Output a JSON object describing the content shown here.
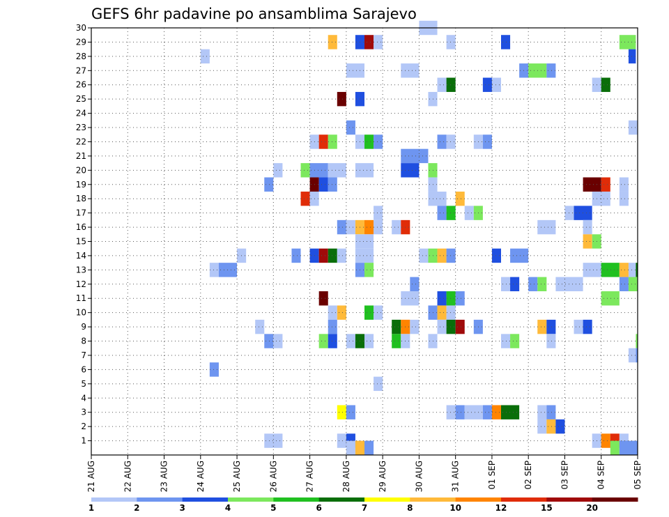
{
  "chart_data": {
    "type": "heatmap",
    "title": "GEFS 6hr padavine po ansamblima Sarajevo",
    "x_tick_labels": [
      "21 AUG",
      "22 AUG",
      "23 AUG",
      "24 AUG",
      "25 AUG",
      "26 AUG",
      "27 AUG",
      "28 AUG",
      "29 AUG",
      "30 AUG",
      "31 AUG",
      "01 SEP",
      "02 SEP",
      "03 SEP",
      "04 SEP",
      "05 SEP"
    ],
    "y_tick_labels": [
      "1",
      "2",
      "3",
      "4",
      "5",
      "6",
      "7",
      "8",
      "9",
      "10",
      "11",
      "12",
      "13",
      "14",
      "15",
      "16",
      "17",
      "18",
      "19",
      "20",
      "21",
      "22",
      "23",
      "24",
      "25",
      "26",
      "27",
      "28",
      "29",
      "30"
    ],
    "xlim": [
      0,
      15
    ],
    "ylim": [
      0,
      30
    ],
    "grid": true,
    "legend": {
      "placement": "bottom",
      "labels": [
        "1",
        "2",
        "3",
        "4",
        "5",
        "6",
        "7",
        "8",
        "10",
        "12",
        "15",
        "20"
      ],
      "colors": [
        "#b3c7f7",
        "#6e95f0",
        "#1f4fe0",
        "#7ce85d",
        "#20c020",
        "#0a6e0a",
        "#ffff00",
        "#ffba3a",
        "#ff8400",
        "#e02c08",
        "#a00a0a",
        "#6a0000"
      ]
    },
    "palette": [
      "#b3c7f7",
      "#6e95f0",
      "#1f4fe0",
      "#7ce85d",
      "#20c020",
      "#0a6e0a",
      "#ffff00",
      "#ffba3a",
      "#ff8400",
      "#e02c08",
      "#a00a0a",
      "#6a0000"
    ],
    "cells_format": "[x_day_start, x_day_end, y_member, color_class_index]",
    "cells": [
      [
        9.0,
        9.5,
        30,
        0
      ],
      [
        6.5,
        6.75,
        29,
        7
      ],
      [
        7.25,
        7.5,
        29,
        2
      ],
      [
        7.5,
        7.75,
        29,
        10
      ],
      [
        7.75,
        8.0,
        29,
        0
      ],
      [
        9.75,
        10.0,
        29,
        0
      ],
      [
        11.25,
        11.5,
        29,
        2
      ],
      [
        14.5,
        14.95,
        29,
        3
      ],
      [
        3.0,
        3.25,
        28,
        0
      ],
      [
        14.75,
        14.95,
        28,
        2
      ],
      [
        7.0,
        7.5,
        27,
        0
      ],
      [
        8.5,
        9.0,
        27,
        0
      ],
      [
        11.75,
        12.0,
        27,
        1
      ],
      [
        12.0,
        12.5,
        27,
        3
      ],
      [
        12.5,
        12.75,
        27,
        1
      ],
      [
        9.5,
        9.75,
        26,
        0
      ],
      [
        9.75,
        10.0,
        26,
        5
      ],
      [
        10.75,
        11.0,
        26,
        2
      ],
      [
        11.0,
        11.25,
        26,
        0
      ],
      [
        13.75,
        14.0,
        26,
        0
      ],
      [
        14.0,
        14.25,
        26,
        5
      ],
      [
        6.75,
        7.0,
        25,
        11
      ],
      [
        7.25,
        7.5,
        25,
        2
      ],
      [
        9.25,
        9.5,
        25,
        0
      ],
      [
        7.0,
        7.25,
        23,
        1
      ],
      [
        14.75,
        15.0,
        23,
        0
      ],
      [
        6.0,
        6.25,
        22,
        0
      ],
      [
        6.25,
        6.5,
        22,
        9
      ],
      [
        6.5,
        6.75,
        22,
        3
      ],
      [
        7.25,
        7.5,
        22,
        0
      ],
      [
        7.5,
        7.75,
        22,
        4
      ],
      [
        7.75,
        8.0,
        22,
        1
      ],
      [
        9.5,
        9.75,
        22,
        1
      ],
      [
        9.75,
        10.0,
        22,
        0
      ],
      [
        10.5,
        10.75,
        22,
        0
      ],
      [
        10.75,
        11.0,
        22,
        1
      ],
      [
        8.5,
        9.25,
        21,
        1
      ],
      [
        5.0,
        5.25,
        20,
        0
      ],
      [
        5.75,
        6.0,
        20,
        3
      ],
      [
        6.0,
        6.5,
        20,
        1
      ],
      [
        6.5,
        7.0,
        20,
        0
      ],
      [
        7.25,
        7.75,
        20,
        0
      ],
      [
        8.5,
        9.0,
        20,
        2
      ],
      [
        9.25,
        9.5,
        20,
        3
      ],
      [
        4.75,
        5.0,
        19,
        1
      ],
      [
        6.0,
        6.25,
        19,
        11
      ],
      [
        6.25,
        6.5,
        19,
        2
      ],
      [
        6.5,
        6.75,
        19,
        1
      ],
      [
        9.25,
        9.5,
        19,
        0
      ],
      [
        13.5,
        14.0,
        19,
        11
      ],
      [
        14.0,
        14.25,
        19,
        9
      ],
      [
        14.5,
        14.75,
        19,
        0
      ],
      [
        5.75,
        6.0,
        18,
        9
      ],
      [
        6.0,
        6.25,
        18,
        0
      ],
      [
        9.25,
        9.75,
        18,
        0
      ],
      [
        10.0,
        10.25,
        18,
        7
      ],
      [
        13.75,
        14.25,
        18,
        0
      ],
      [
        14.5,
        14.75,
        18,
        0
      ],
      [
        7.75,
        8.0,
        17,
        0
      ],
      [
        9.5,
        9.75,
        17,
        1
      ],
      [
        9.75,
        10.0,
        17,
        4
      ],
      [
        10.25,
        10.5,
        17,
        0
      ],
      [
        10.5,
        10.75,
        17,
        3
      ],
      [
        13.0,
        13.25,
        17,
        0
      ],
      [
        13.25,
        13.75,
        17,
        2
      ],
      [
        6.75,
        7.0,
        16,
        1
      ],
      [
        7.0,
        7.25,
        16,
        0
      ],
      [
        7.25,
        7.5,
        16,
        7
      ],
      [
        7.5,
        7.75,
        16,
        8
      ],
      [
        7.75,
        8.0,
        16,
        0
      ],
      [
        8.25,
        8.5,
        16,
        0
      ],
      [
        8.5,
        8.75,
        16,
        9
      ],
      [
        12.25,
        12.75,
        16,
        0
      ],
      [
        13.5,
        13.75,
        16,
        0
      ],
      [
        7.25,
        7.75,
        15,
        0
      ],
      [
        13.5,
        13.75,
        15,
        7
      ],
      [
        13.75,
        14.0,
        15,
        3
      ],
      [
        4.0,
        4.25,
        14,
        0
      ],
      [
        5.5,
        5.75,
        14,
        1
      ],
      [
        6.0,
        6.25,
        14,
        2
      ],
      [
        6.25,
        6.5,
        14,
        10
      ],
      [
        6.5,
        6.75,
        14,
        5
      ],
      [
        6.75,
        7.0,
        14,
        0
      ],
      [
        7.25,
        7.75,
        14,
        0
      ],
      [
        9.0,
        9.25,
        14,
        0
      ],
      [
        9.25,
        9.5,
        14,
        3
      ],
      [
        9.5,
        9.75,
        14,
        7
      ],
      [
        9.75,
        10.0,
        14,
        1
      ],
      [
        11.0,
        11.25,
        14,
        2
      ],
      [
        11.5,
        12.0,
        14,
        1
      ],
      [
        3.25,
        3.5,
        13,
        0
      ],
      [
        3.5,
        4.0,
        13,
        1
      ],
      [
        7.25,
        7.5,
        13,
        1
      ],
      [
        7.5,
        7.75,
        13,
        3
      ],
      [
        13.5,
        14.0,
        13,
        0
      ],
      [
        14.0,
        14.5,
        13,
        4
      ],
      [
        14.5,
        14.75,
        13,
        7
      ],
      [
        14.75,
        14.95,
        13,
        0
      ],
      [
        14.95,
        15.0,
        13,
        5
      ],
      [
        8.75,
        9.0,
        12,
        1
      ],
      [
        11.25,
        11.5,
        12,
        0
      ],
      [
        11.5,
        11.75,
        12,
        2
      ],
      [
        12.0,
        12.25,
        12,
        1
      ],
      [
        12.25,
        12.5,
        12,
        3
      ],
      [
        12.75,
        13.5,
        12,
        0
      ],
      [
        14.5,
        14.75,
        12,
        1
      ],
      [
        14.75,
        15.0,
        12,
        3
      ],
      [
        6.25,
        6.5,
        11,
        11
      ],
      [
        8.5,
        9.0,
        11,
        0
      ],
      [
        9.5,
        9.75,
        11,
        2
      ],
      [
        9.75,
        10.0,
        11,
        4
      ],
      [
        10.0,
        10.25,
        11,
        1
      ],
      [
        14.0,
        14.5,
        11,
        3
      ],
      [
        6.5,
        6.75,
        10,
        0
      ],
      [
        6.75,
        7.0,
        10,
        7
      ],
      [
        7.5,
        7.75,
        10,
        4
      ],
      [
        7.75,
        8.0,
        10,
        0
      ],
      [
        9.25,
        9.5,
        10,
        1
      ],
      [
        9.5,
        9.75,
        10,
        7
      ],
      [
        9.75,
        10.0,
        10,
        0
      ],
      [
        4.5,
        4.75,
        9,
        0
      ],
      [
        6.5,
        6.75,
        9,
        1
      ],
      [
        8.25,
        8.5,
        9,
        5
      ],
      [
        8.5,
        8.75,
        9,
        8
      ],
      [
        8.75,
        9.0,
        9,
        0
      ],
      [
        9.5,
        9.75,
        9,
        0
      ],
      [
        9.75,
        10.0,
        9,
        5
      ],
      [
        10.0,
        10.25,
        9,
        10
      ],
      [
        10.5,
        10.75,
        9,
        1
      ],
      [
        12.25,
        12.5,
        9,
        7
      ],
      [
        12.5,
        12.75,
        9,
        2
      ],
      [
        13.25,
        13.5,
        9,
        0
      ],
      [
        13.5,
        13.75,
        9,
        2
      ],
      [
        4.75,
        5.0,
        8,
        1
      ],
      [
        5.0,
        5.25,
        8,
        0
      ],
      [
        6.25,
        6.5,
        8,
        3
      ],
      [
        6.5,
        6.75,
        8,
        2
      ],
      [
        7.0,
        7.25,
        8,
        0
      ],
      [
        7.25,
        7.5,
        8,
        5
      ],
      [
        7.5,
        7.75,
        8,
        0
      ],
      [
        8.25,
        8.5,
        8,
        4
      ],
      [
        8.5,
        8.75,
        8,
        0
      ],
      [
        9.25,
        9.5,
        8,
        0
      ],
      [
        11.25,
        11.5,
        8,
        0
      ],
      [
        11.5,
        11.75,
        8,
        3
      ],
      [
        12.5,
        12.75,
        8,
        0
      ],
      [
        14.95,
        15.0,
        8,
        3
      ],
      [
        14.75,
        14.95,
        7,
        0
      ],
      [
        14.95,
        15.0,
        7,
        1
      ],
      [
        3.25,
        3.5,
        6,
        1
      ],
      [
        7.75,
        8.0,
        5,
        0
      ],
      [
        6.75,
        7.0,
        3,
        6
      ],
      [
        7.0,
        7.25,
        3,
        1
      ],
      [
        9.75,
        10.0,
        3,
        0
      ],
      [
        10.0,
        10.25,
        3,
        1
      ],
      [
        10.25,
        10.75,
        3,
        0
      ],
      [
        10.75,
        11.0,
        3,
        1
      ],
      [
        11.0,
        11.25,
        3,
        8
      ],
      [
        11.25,
        11.75,
        3,
        5
      ],
      [
        12.25,
        12.5,
        3,
        0
      ],
      [
        12.5,
        12.75,
        3,
        1
      ],
      [
        12.25,
        12.5,
        2,
        0
      ],
      [
        12.5,
        12.75,
        2,
        7
      ],
      [
        12.75,
        13.0,
        2,
        2
      ],
      [
        4.75,
        5.25,
        1,
        0
      ],
      [
        6.75,
        7.0,
        1,
        0
      ],
      [
        7.0,
        7.25,
        1,
        2
      ],
      [
        13.75,
        14.0,
        1,
        0
      ],
      [
        14.0,
        14.25,
        1,
        8
      ],
      [
        14.25,
        14.5,
        1,
        9
      ],
      [
        14.5,
        14.75,
        1,
        0
      ],
      [
        7.0,
        7.25,
        0.5,
        0
      ],
      [
        7.25,
        7.5,
        0.5,
        7
      ],
      [
        7.5,
        7.75,
        0.5,
        1
      ],
      [
        14.25,
        14.5,
        0.5,
        3
      ],
      [
        14.5,
        15.0,
        0.5,
        1
      ]
    ]
  }
}
